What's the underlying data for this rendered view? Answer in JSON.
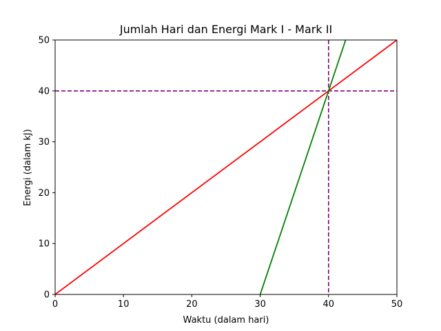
{
  "chart_data": {
    "type": "line",
    "title": "Jumlah Hari dan Energi Mark I - Mark II",
    "xlabel": "Waktu (dalam hari)",
    "ylabel": "Energi (dalam kJ)",
    "xlim": [
      0,
      50
    ],
    "ylim": [
      0,
      50
    ],
    "x_ticks": [
      0,
      10,
      20,
      30,
      40,
      50
    ],
    "y_ticks": [
      0,
      10,
      20,
      30,
      40,
      50
    ],
    "grid": false,
    "series": [
      {
        "color": "#ff0000",
        "style": "solid",
        "x": [
          0,
          50
        ],
        "y": [
          0,
          50
        ]
      },
      {
        "color": "#008000",
        "style": "solid",
        "x": [
          30,
          42.5
        ],
        "y": [
          0,
          50
        ]
      }
    ],
    "reference_lines": [
      {
        "orientation": "horizontal",
        "value": 40,
        "color": "#800080",
        "style": "dashed"
      },
      {
        "orientation": "vertical",
        "value": 40,
        "color": "#800080",
        "style": "dashed"
      }
    ]
  }
}
